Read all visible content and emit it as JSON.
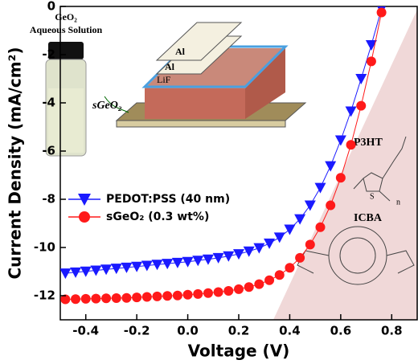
{
  "chart_data": {
    "type": "line",
    "xlabel": "Voltage (V)",
    "ylabel": "Current Density (mA/cm²)",
    "x": [
      -0.48,
      -0.44,
      -0.4,
      -0.36,
      -0.32,
      -0.28,
      -0.24,
      -0.2,
      -0.16,
      -0.12,
      -0.08,
      -0.04,
      0,
      0.04,
      0.08,
      0.12,
      0.16,
      0.2,
      0.24,
      0.28,
      0.32,
      0.36,
      0.4,
      0.44,
      0.48,
      0.52,
      0.56,
      0.6,
      0.64,
      0.68,
      0.72,
      0.76
    ],
    "series": [
      {
        "name": "PEDOT:PSS (40 nm)",
        "color": "#1a1aff",
        "marker": "triangle-down",
        "values": [
          -11.07,
          -11.03,
          -10.99,
          -10.95,
          -10.91,
          -10.87,
          -10.83,
          -10.79,
          -10.75,
          -10.71,
          -10.67,
          -10.63,
          -10.59,
          -10.54,
          -10.49,
          -10.43,
          -10.36,
          -10.27,
          -10.16,
          -10.02,
          -9.83,
          -9.58,
          -9.25,
          -8.82,
          -8.25,
          -7.52,
          -6.62,
          -5.55,
          -4.35,
          -3.0,
          -1.6,
          -0.1
        ]
      },
      {
        "name": "sGeO₂ (0.3 wt%)",
        "color": "#ff1a1a",
        "marker": "circle",
        "values": [
          -12.15,
          -12.14,
          -12.13,
          -12.12,
          -12.11,
          -12.1,
          -12.09,
          -12.07,
          -12.05,
          -12.03,
          -12.01,
          -11.99,
          -11.96,
          -11.93,
          -11.89,
          -11.85,
          -11.8,
          -11.73,
          -11.64,
          -11.52,
          -11.36,
          -11.14,
          -10.84,
          -10.43,
          -9.88,
          -9.16,
          -8.25,
          -7.11,
          -5.74,
          -4.12,
          -2.28,
          -0.25
        ]
      }
    ],
    "xlim": [
      -0.5,
      0.9
    ],
    "ylim": [
      -13,
      0
    ],
    "xticks": [
      -0.4,
      -0.2,
      {
        "value": 0,
        "label": "0.0"
      },
      0.2,
      0.4,
      0.6,
      0.8
    ],
    "yticks": [
      -12,
      -10,
      -8,
      -6,
      -4,
      -2,
      0
    ],
    "legend": "lower-left",
    "annotations": [
      "GeO₂",
      "Aqueous Solution",
      "Al",
      "Al",
      "LiF",
      "sGeO₂",
      "P3HT",
      "S",
      "n",
      "ICBA"
    ]
  }
}
